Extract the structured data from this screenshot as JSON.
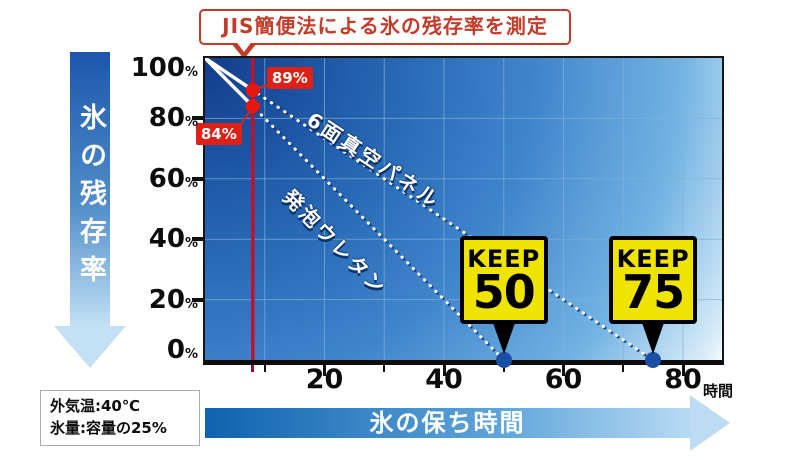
{
  "title": "JIS簡便法による氷の残存率を測定",
  "y_axis": {
    "arrow_title": "氷の残存率",
    "ticks": [
      "100",
      "80",
      "60",
      "40",
      "20",
      "0"
    ],
    "unit": "%"
  },
  "x_axis": {
    "ticks": [
      "20",
      "40",
      "60",
      "80"
    ],
    "unit": "時間",
    "arrow_title": "氷の保ち時間"
  },
  "note": {
    "line1": "外気温:40℃",
    "line2": "氷量:容量の25%"
  },
  "colors": {
    "title_red": "#c33c2a",
    "marker_line_red": "#bd1330",
    "callout_bg_red": "#dd2117",
    "keep_yellow": "#efe400",
    "axis_dot_blue": "#1b4fa4",
    "plot_gradient_dark": "#123d8c",
    "plot_gradient_light": "#f2f9fd"
  },
  "chart_data": {
    "type": "line",
    "title": "JIS簡便法による氷の残存率を測定",
    "xlabel": "氷の保ち時間",
    "x_unit": "時間",
    "ylabel": "氷の残存率",
    "y_unit": "%",
    "xlim": [
      0,
      86.5
    ],
    "ylim": [
      0,
      100
    ],
    "x_ticks": [
      20,
      40,
      60,
      80
    ],
    "y_ticks": [
      100,
      80,
      60,
      40,
      20,
      0
    ],
    "grid": true,
    "marker_line_x": 8,
    "series": [
      {
        "name": "6面真空パネル",
        "points": [
          [
            0,
            100
          ],
          [
            75,
            0
          ]
        ],
        "marker": {
          "x": 8,
          "y": 89,
          "label": "89%"
        },
        "keep_hours": 75,
        "keep_label": "KEEP",
        "keep_value": "75"
      },
      {
        "name": "発泡ウレタン",
        "points": [
          [
            0,
            100
          ],
          [
            50,
            0
          ]
        ],
        "marker": {
          "x": 8,
          "y": 84,
          "label": "84%"
        },
        "keep_hours": 50,
        "keep_label": "KEEP",
        "keep_value": "50"
      }
    ],
    "conditions": [
      "外気温:40℃",
      "氷量:容量の25%"
    ]
  }
}
